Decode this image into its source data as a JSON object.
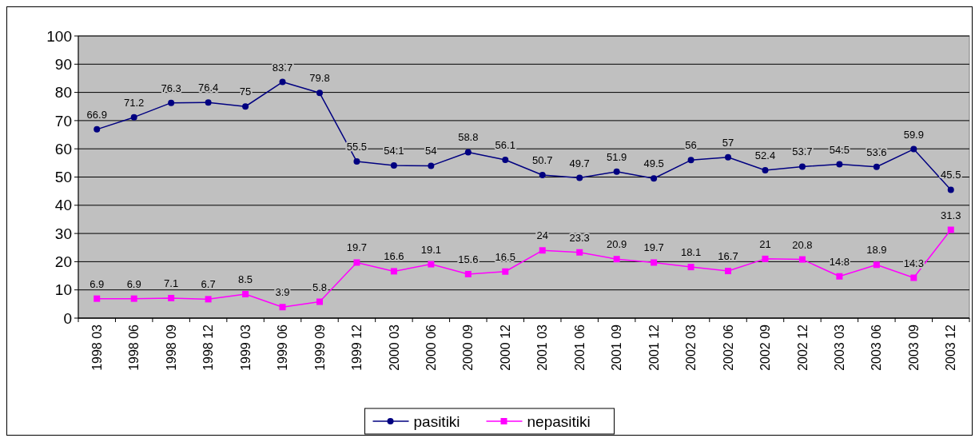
{
  "chart_data": {
    "type": "line",
    "categories": [
      "1998 03",
      "1998 06",
      "1998 09",
      "1998 12",
      "1999 03",
      "1999 06",
      "1999 09",
      "1999 12",
      "2000 03",
      "2000 06",
      "2000 09",
      "2000 12",
      "2001 03",
      "2001 06",
      "2001 09",
      "2001 12",
      "2002 03",
      "2002 06",
      "2002 09",
      "2002 12",
      "2003 03",
      "2003 06",
      "2003 09",
      "2003 12"
    ],
    "series": [
      {
        "name": "pasitiki",
        "color": "#000080",
        "marker": "circle",
        "values": [
          66.9,
          71.2,
          76.3,
          76.4,
          75,
          83.7,
          79.8,
          55.5,
          54.1,
          54,
          58.8,
          56.1,
          50.7,
          49.7,
          51.9,
          49.5,
          56,
          57,
          52.4,
          53.7,
          54.5,
          53.6,
          59.9,
          45.5
        ]
      },
      {
        "name": "nepasitiki",
        "color": "#ff00ff",
        "marker": "square",
        "values": [
          6.9,
          6.9,
          7.1,
          6.7,
          8.5,
          3.9,
          5.8,
          19.7,
          16.6,
          19.1,
          15.6,
          16.5,
          24,
          23.3,
          20.9,
          19.7,
          18.1,
          16.7,
          21,
          20.8,
          14.8,
          18.9,
          14.3,
          31.3
        ]
      }
    ],
    "ylim": [
      0,
      100
    ],
    "yticks": [
      0,
      10,
      20,
      30,
      40,
      50,
      60,
      70,
      80,
      90,
      100
    ],
    "grid": "y",
    "legend": "bottom",
    "data_labels": true
  }
}
